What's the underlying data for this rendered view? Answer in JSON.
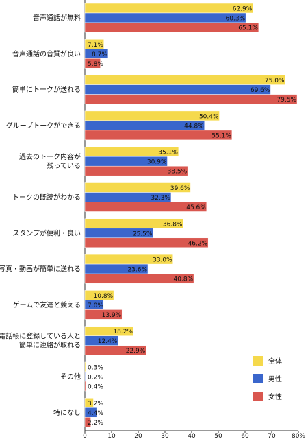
{
  "chart_data": {
    "type": "bar",
    "orientation": "horizontal",
    "categories": [
      [
        "音声通話が無料"
      ],
      [
        "音声通話の音質が良い"
      ],
      [
        "簡単にトークが送れる"
      ],
      [
        "グループトークができる"
      ],
      [
        "過去のトーク内容が",
        "残っている"
      ],
      [
        "トークの既読がわかる"
      ],
      [
        "スタンプが便利・良い"
      ],
      [
        "写真・動画が簡単に送れる"
      ],
      [
        "ゲームで友達と競える"
      ],
      [
        "電話帳に登録している人と",
        "簡単に連絡が取れる"
      ],
      [
        "その他"
      ],
      [
        "特になし"
      ]
    ],
    "series": [
      {
        "name": "全体",
        "color": "#f5d94c",
        "values": [
          62.9,
          7.1,
          75.0,
          50.4,
          35.1,
          39.6,
          36.8,
          33.0,
          10.8,
          18.2,
          0.3,
          3.2
        ]
      },
      {
        "name": "男性",
        "color": "#3a66cc",
        "values": [
          60.3,
          8.7,
          69.6,
          44.8,
          30.9,
          32.3,
          25.5,
          23.6,
          7.0,
          12.4,
          0.2,
          4.4
        ]
      },
      {
        "name": "女性",
        "color": "#d9574f",
        "values": [
          65.1,
          5.8,
          79.5,
          55.1,
          38.5,
          45.6,
          46.2,
          40.8,
          13.9,
          22.9,
          0.4,
          2.2
        ]
      }
    ],
    "value_suffix": "%",
    "xlim": [
      0,
      80
    ],
    "xticks": [
      "0",
      "10",
      "20",
      "30",
      "40",
      "50",
      "60",
      "70",
      "80%"
    ],
    "grid": false,
    "legend_position": "bottom-right"
  }
}
